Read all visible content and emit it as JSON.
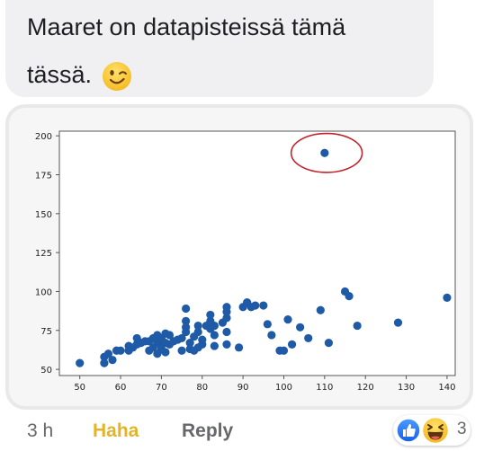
{
  "message": {
    "text": "Maaret on datapisteissä tämä\ntässä.",
    "emoji": "winking-face"
  },
  "chart_data": {
    "type": "scatter",
    "title": "",
    "xlabel": "",
    "ylabel": "",
    "xlim": [
      45,
      142
    ],
    "ylim": [
      46,
      203
    ],
    "x_ticks": [
      "50",
      "60",
      "70",
      "80",
      "90",
      "100",
      "110",
      "120",
      "130",
      "140"
    ],
    "y_ticks": [
      "50",
      "75",
      "100",
      "125",
      "150",
      "175",
      "200"
    ],
    "marker_color": "#1f5aa6",
    "annotation": {
      "type": "ellipse",
      "color": "#c0262d",
      "center": [
        110.5,
        189
      ],
      "rx_data": 8.7,
      "ry_data": 12.5
    },
    "points": [
      [
        50,
        54
      ],
      [
        56,
        54
      ],
      [
        56,
        58
      ],
      [
        57,
        60
      ],
      [
        58,
        56
      ],
      [
        59,
        62
      ],
      [
        60,
        62
      ],
      [
        62,
        62
      ],
      [
        62,
        65
      ],
      [
        63,
        64
      ],
      [
        64,
        66
      ],
      [
        64,
        70
      ],
      [
        65,
        67
      ],
      [
        66,
        68
      ],
      [
        67,
        62
      ],
      [
        67,
        68
      ],
      [
        68,
        64
      ],
      [
        68,
        70
      ],
      [
        69,
        60
      ],
      [
        69,
        67
      ],
      [
        69,
        72
      ],
      [
        70,
        63
      ],
      [
        70,
        65
      ],
      [
        70,
        70
      ],
      [
        71,
        61
      ],
      [
        71,
        67
      ],
      [
        71,
        73
      ],
      [
        72,
        66
      ],
      [
        72,
        72
      ],
      [
        73,
        68
      ],
      [
        74,
        69
      ],
      [
        75,
        62
      ],
      [
        75,
        70
      ],
      [
        76,
        74
      ],
      [
        76,
        77
      ],
      [
        76,
        81
      ],
      [
        76,
        89
      ],
      [
        77,
        63
      ],
      [
        77,
        67
      ],
      [
        78,
        62
      ],
      [
        78,
        71
      ],
      [
        79,
        64
      ],
      [
        79,
        74
      ],
      [
        79,
        78
      ],
      [
        80,
        66
      ],
      [
        80,
        69
      ],
      [
        81,
        78
      ],
      [
        82,
        76
      ],
      [
        82,
        81
      ],
      [
        82,
        85
      ],
      [
        83,
        65
      ],
      [
        83,
        72
      ],
      [
        83,
        78
      ],
      [
        85,
        80
      ],
      [
        86,
        66
      ],
      [
        86,
        74
      ],
      [
        86,
        83
      ],
      [
        86,
        87
      ],
      [
        86,
        90
      ],
      [
        89,
        64
      ],
      [
        90,
        90
      ],
      [
        91,
        93
      ],
      [
        92,
        90
      ],
      [
        93,
        91
      ],
      [
        95,
        91
      ],
      [
        96,
        79
      ],
      [
        97,
        72
      ],
      [
        99,
        62
      ],
      [
        100,
        62
      ],
      [
        101,
        82
      ],
      [
        102,
        66
      ],
      [
        104,
        77
      ],
      [
        106,
        70
      ],
      [
        109,
        88
      ],
      [
        111,
        67
      ],
      [
        115,
        100
      ],
      [
        116,
        97
      ],
      [
        118,
        78
      ],
      [
        128,
        80
      ],
      [
        140,
        96
      ],
      [
        110,
        189
      ]
    ]
  },
  "footer": {
    "timestamp": "3 h",
    "haha_label": "Haha",
    "reply_label": "Reply",
    "reaction_count": "3",
    "reactions": [
      "like-icon",
      "haha-emoji-icon"
    ],
    "haha_color": "#e3b427"
  }
}
